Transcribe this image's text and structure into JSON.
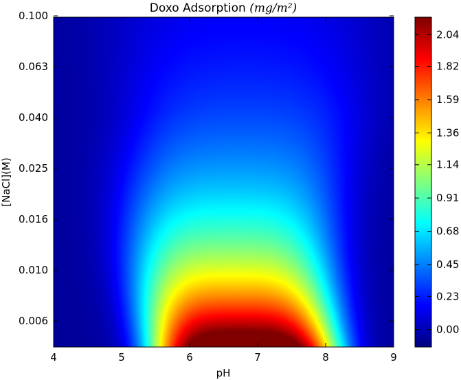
{
  "chart_data": {
    "type": "heatmap",
    "title": "Doxo Adsorption ",
    "title_math": "(mg/m²)",
    "xlabel": "pH",
    "ylabel": "[NaCl](M)",
    "x_range": [
      4,
      9
    ],
    "x_ticks": [
      4,
      5,
      6,
      7,
      8,
      9
    ],
    "y_ticks": [
      "0.006",
      "0.010",
      "0.016",
      "0.025",
      "0.040",
      "0.063",
      "0.100"
    ],
    "colormap": "jet",
    "color_range": [
      -0.12,
      2.16
    ],
    "colorbar_ticks": [
      "2.04",
      "1.82",
      "1.59",
      "1.36",
      "1.14",
      "0.91",
      "0.68",
      "0.45",
      "0.23",
      "0.00"
    ],
    "field_model": {
      "peak_ph": 6.8,
      "peak_value": 2.15,
      "min_value": -0.1
    }
  }
}
